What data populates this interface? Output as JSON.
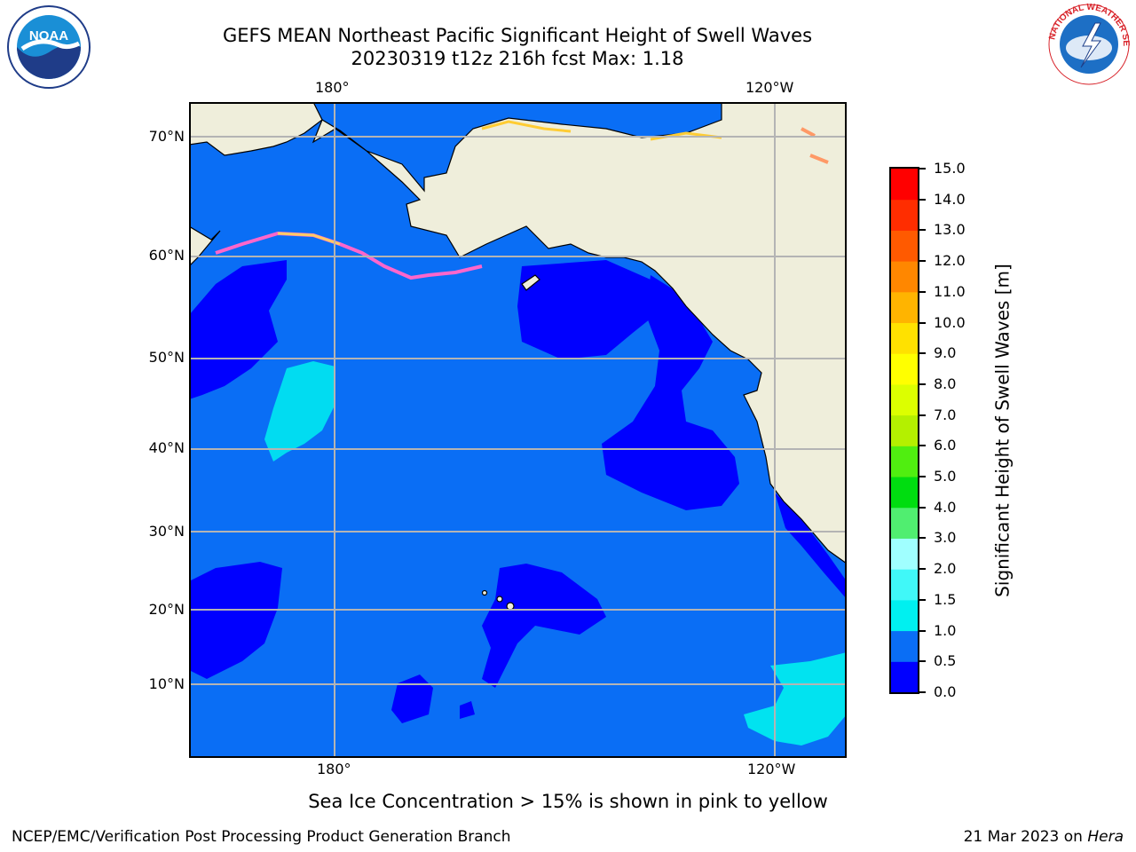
{
  "title": {
    "line1": "GEFS MEAN Northeast Pacific Significant Height of Swell Waves",
    "line2": "20230319 t12z 216h fcst   Max: 1.18"
  },
  "axes": {
    "lon_top": [
      "180°",
      "120°W"
    ],
    "lon_bottom": [
      "180°",
      "120°W"
    ],
    "lat": [
      "70°N",
      "60°N",
      "50°N",
      "40°N",
      "30°N",
      "20°N",
      "10°N"
    ]
  },
  "colorbar": {
    "label": "Significant Height of Swell Waves [m]",
    "ticks": [
      "0.0",
      "0.5",
      "1.0",
      "1.5",
      "2.0",
      "3.0",
      "4.0",
      "5.0",
      "6.0",
      "7.0",
      "8.0",
      "9.0",
      "10.0",
      "11.0",
      "12.0",
      "13.0",
      "14.0",
      "15.0"
    ],
    "colors": [
      "#0000ff",
      "#0a6ef5",
      "#00f0f0",
      "#40f8f8",
      "#a0ffff",
      "#50ee70",
      "#00dd10",
      "#50ee10",
      "#b4f000",
      "#dcff00",
      "#ffff00",
      "#ffe100",
      "#ffb400",
      "#ff8700",
      "#ff5a00",
      "#ff2d00",
      "#ff0000"
    ]
  },
  "colors": {
    "land": "#efeedb",
    "ocean_mid": "#0a6ef5",
    "ocean_low": "#0000ff",
    "ocean_high": "#00f0f0",
    "grid": "#b4b4b4"
  },
  "note": "Sea Ice Concentration > 15% is shown in pink to yellow",
  "footer": {
    "left": "NCEP/EMC/Verification Post Processing Product Generation Branch",
    "right_prefix": "21 Mar 2023 on ",
    "right_italic": "Hera"
  },
  "logos": {
    "noaa": {
      "icon": "noaa-logo",
      "text": "NOAA"
    },
    "nws": {
      "icon": "nws-logo",
      "text": "NATIONAL WEATHER SERVICE"
    }
  }
}
